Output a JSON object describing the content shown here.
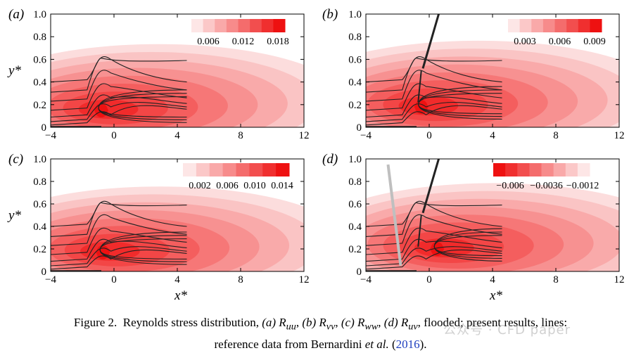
{
  "chart_data": [
    {
      "panel": "(a)",
      "type": "heatmap",
      "component": "R_uu",
      "xlabel": "",
      "ylabel": "y*",
      "xlim": [
        -4,
        12
      ],
      "ylim": [
        0,
        1.0
      ],
      "xticks": [
        "−4",
        "0",
        "4",
        "8",
        "12"
      ],
      "yticks": [
        "0",
        "0.2",
        "0.4",
        "0.6",
        "0.8",
        "1.0"
      ],
      "colorbar": {
        "ticks": [
          "0.006",
          "0.012",
          "0.018"
        ],
        "min": 0.0,
        "max": 0.021,
        "direction": "light-to-dark",
        "placement": "top-right"
      },
      "peak": {
        "x": -0.8,
        "y": 0.15,
        "value": 0.021
      },
      "reference_lines_extent_x": [
        -4,
        4.6
      ],
      "bump_x": -0.8
    },
    {
      "panel": "(b)",
      "type": "heatmap",
      "component": "R_vv",
      "xlabel": "",
      "ylabel": "",
      "xlim": [
        -4,
        12
      ],
      "ylim": [
        0,
        1.0
      ],
      "xticks": [
        "−4",
        "0",
        "4",
        "8",
        "12"
      ],
      "yticks": [
        "0",
        "0.2",
        "0.4",
        "0.6",
        "0.8",
        "1.0"
      ],
      "colorbar": {
        "ticks": [
          "0.003",
          "0.006",
          "0.009"
        ],
        "min": 0.0,
        "max": 0.0105,
        "direction": "light-to-dark",
        "placement": "top-right"
      },
      "peak": {
        "x": -0.5,
        "y": 0.18,
        "value": 0.0105
      },
      "reference_lines_extent_x": [
        -4,
        4.6
      ],
      "bump_x": -0.8
    },
    {
      "panel": "(c)",
      "type": "heatmap",
      "component": "R_ww",
      "xlabel": "x*",
      "ylabel": "y*",
      "xlim": [
        -4,
        12
      ],
      "ylim": [
        0,
        1.0
      ],
      "xticks": [
        "−4",
        "0",
        "4",
        "8",
        "12"
      ],
      "yticks": [
        "0",
        "0.2",
        "0.4",
        "0.6",
        "0.8",
        "1.0"
      ],
      "colorbar": {
        "ticks": [
          "0.002",
          "0.006",
          "0.010",
          "0.014"
        ],
        "min": 0.0,
        "max": 0.016,
        "direction": "light-to-dark",
        "placement": "top-right"
      },
      "peak": {
        "x": -0.7,
        "y": 0.17,
        "value": 0.016
      },
      "reference_lines_extent_x": [
        -4,
        4.6
      ],
      "bump_x": -0.8
    },
    {
      "panel": "(d)",
      "type": "heatmap",
      "component": "R_uv",
      "xlabel": "x*",
      "ylabel": "",
      "xlim": [
        -4,
        12
      ],
      "ylim": [
        0,
        1.0
      ],
      "xticks": [
        "−4",
        "0",
        "4",
        "8",
        "12"
      ],
      "yticks": [
        "0",
        "0.2",
        "0.4",
        "0.6",
        "0.8",
        "1.0"
      ],
      "colorbar": {
        "ticks": [
          "−0.006",
          "−0.0036",
          "−0.0012"
        ],
        "min": -0.0075,
        "max": 0.0,
        "direction": "dark-to-light",
        "placement": "top-right"
      },
      "peak": {
        "x": 0.5,
        "y": 0.2,
        "value": -0.0075
      },
      "reference_lines_extent_x": [
        -4,
        4.6
      ],
      "bump_x": -0.8
    }
  ],
  "caption": {
    "fig_label": "Figure 2.",
    "text1": "Reynolds stress distribution,",
    "a_label": "(a)",
    "a_sym": "R",
    "a_sub": "uu",
    "b_label": "(b)",
    "b_sym": "R",
    "b_sub": "vv",
    "c_label": "(c)",
    "c_sym": "R",
    "c_sub": "ww",
    "d_label": "(d)",
    "d_sym": "R",
    "d_sub": "uv",
    "text2": ", flooded; present results, lines:",
    "text3": "reference data from Bernardini",
    "et_al": "et al.",
    "year": "2016",
    "end": ")."
  },
  "watermark": "公众号 · CFD paper",
  "colors": {
    "peak": "#ee1111",
    "light": "#fde6e6",
    "line": "#222222",
    "ghost": "#bfbfbf"
  }
}
